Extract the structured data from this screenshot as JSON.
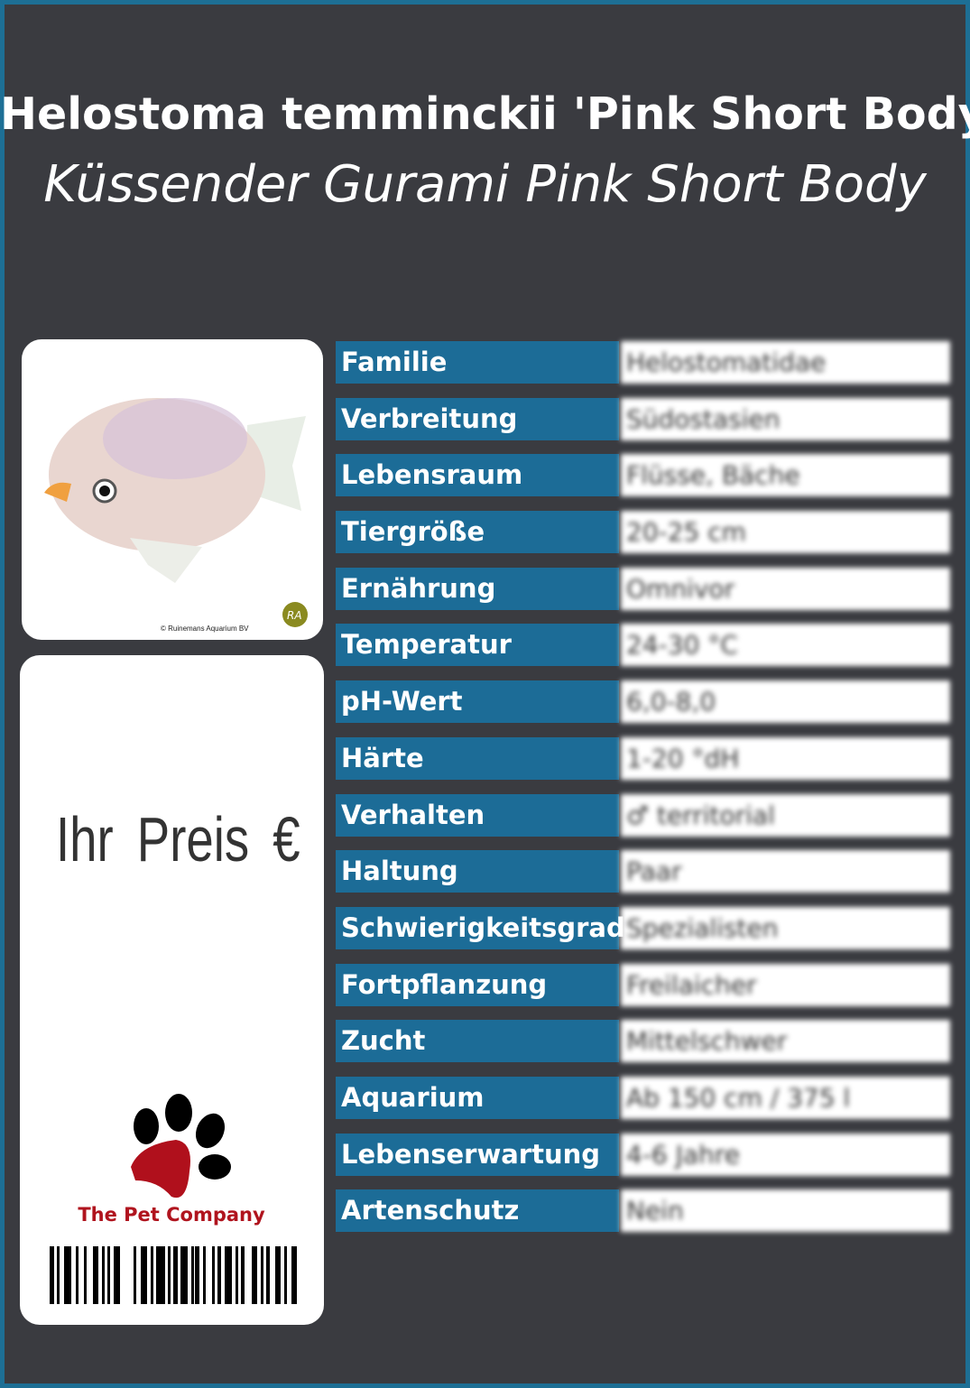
{
  "title": "Helostoma temminckii 'Pink Short Body'",
  "subtitle": "Küssender Gurami Pink Short Body",
  "image_credit": "© Ruinemans Aquarium BV",
  "credit_logo_text": "RA",
  "price_label": "Ihr Preis €",
  "brand": "The Pet Company",
  "colors": {
    "background": "#3a3b40",
    "label_bg": "#1c6c97",
    "border": "#1d6f95",
    "brand_red": "#b0141e"
  },
  "rows": [
    {
      "label": "Familie",
      "value": "Helostomatidae"
    },
    {
      "label": "Verbreitung",
      "value": "Südostasien"
    },
    {
      "label": "Lebensraum",
      "value": "Flüsse, Bäche"
    },
    {
      "label": "Tiergröße",
      "value": "20-25 cm"
    },
    {
      "label": "Ernährung",
      "value": "Omnivor"
    },
    {
      "label": "Temperatur",
      "value": "24-30 °C"
    },
    {
      "label": "pH-Wert",
      "value": "6,0-8,0"
    },
    {
      "label": "Härte",
      "value": "1-20 °dH"
    },
    {
      "label": "Verhalten",
      "value": "♂ territorial"
    },
    {
      "label": "Haltung",
      "value": "Paar"
    },
    {
      "label": "Schwierigkeitsgrad",
      "value": "Spezialisten"
    },
    {
      "label": "Fortpflanzung",
      "value": "Freilaicher"
    },
    {
      "label": "Zucht",
      "value": "Mittelschwer"
    },
    {
      "label": "Aquarium",
      "value": "Ab 150 cm / 375 l"
    },
    {
      "label": "Lebenserwartung",
      "value": "4-6 Jahre"
    },
    {
      "label": "Artenschutz",
      "value": "Nein"
    }
  ]
}
